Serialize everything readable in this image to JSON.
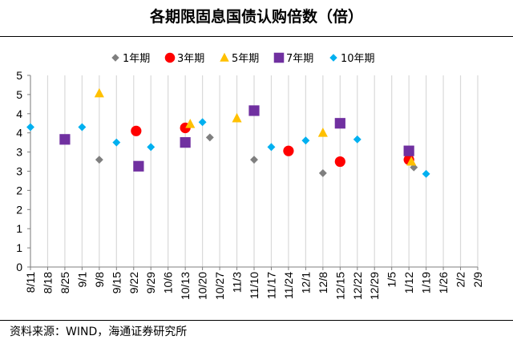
{
  "title": "各期限固息国债认购倍数（倍）",
  "source": "资料来源：WIND，海通证券研究所",
  "colors": {
    "1年期": "#7f7f7f",
    "3年期": "#ff0000",
    "5年期": "#ffc000",
    "7年期": "#7030a0",
    "10年期": "#00b0f0",
    "grid": "#d9d9d9",
    "axis": "#7f7f7f"
  },
  "chart_data": {
    "type": "scatter",
    "title": "各期限固息国债认购倍数（倍）",
    "xlabel": "",
    "ylabel": "",
    "y_tick_labels": [
      "0",
      "1",
      "1",
      "2",
      "2",
      "3",
      "3",
      "4",
      "4",
      "5",
      "5"
    ],
    "y_range": [
      0,
      5
    ],
    "x_tick_labels": [
      "8/11",
      "8/18",
      "8/25",
      "9/1",
      "9/8",
      "9/15",
      "9/22",
      "9/29",
      "10/6",
      "10/13",
      "10/20",
      "10/27",
      "11/3",
      "11/10",
      "11/17",
      "11/24",
      "12/1",
      "12/8",
      "12/15",
      "12/22",
      "12/29",
      "1/5",
      "1/12",
      "1/19",
      "1/26",
      "2/2",
      "2/9"
    ],
    "grid": "vertical",
    "legend_position": "top",
    "series": [
      {
        "name": "1年期",
        "marker": "diamond",
        "points": [
          {
            "x": "9/8",
            "y": 2.8
          },
          {
            "x": "10/23",
            "y": 3.38
          },
          {
            "x": "11/10",
            "y": 2.8
          },
          {
            "x": "12/8",
            "y": 2.45
          },
          {
            "x": "1/14",
            "y": 2.6
          }
        ]
      },
      {
        "name": "3年期",
        "marker": "circle",
        "points": [
          {
            "x": "9/23",
            "y": 3.55
          },
          {
            "x": "10/13",
            "y": 3.63
          },
          {
            "x": "11/24",
            "y": 3.03
          },
          {
            "x": "12/15",
            "y": 2.75
          },
          {
            "x": "1/12",
            "y": 2.8
          }
        ]
      },
      {
        "name": "5年期",
        "marker": "triangle",
        "points": [
          {
            "x": "9/8",
            "y": 4.53
          },
          {
            "x": "10/15",
            "y": 3.73
          },
          {
            "x": "11/3",
            "y": 3.88
          },
          {
            "x": "12/8",
            "y": 3.5
          },
          {
            "x": "1/13",
            "y": 2.75
          }
        ]
      },
      {
        "name": "7年期",
        "marker": "square",
        "points": [
          {
            "x": "8/25",
            "y": 3.33
          },
          {
            "x": "9/24",
            "y": 2.63
          },
          {
            "x": "10/13",
            "y": 3.25
          },
          {
            "x": "11/10",
            "y": 4.08
          },
          {
            "x": "12/15",
            "y": 3.75
          },
          {
            "x": "1/12",
            "y": 3.03
          }
        ]
      },
      {
        "name": "10年期",
        "marker": "diamond",
        "points": [
          {
            "x": "8/11",
            "y": 3.65
          },
          {
            "x": "9/1",
            "y": 3.65
          },
          {
            "x": "9/15",
            "y": 3.25
          },
          {
            "x": "9/29",
            "y": 3.13
          },
          {
            "x": "10/20",
            "y": 3.78
          },
          {
            "x": "11/17",
            "y": 3.13
          },
          {
            "x": "12/1",
            "y": 3.3
          },
          {
            "x": "12/22",
            "y": 3.33
          },
          {
            "x": "1/19",
            "y": 2.43
          }
        ]
      }
    ]
  }
}
